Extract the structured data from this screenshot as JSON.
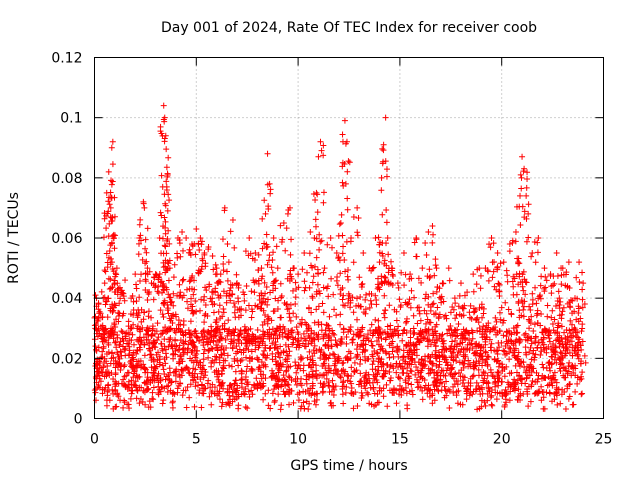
{
  "chart_data": {
    "type": "scatter",
    "title": "Day 001 of 2024, Rate Of TEC Index for receiver coob",
    "xlabel": "GPS time / hours",
    "ylabel": "ROTI / TECUs",
    "xlim": [
      0,
      25
    ],
    "ylim": [
      0,
      0.12
    ],
    "xticks": [
      0,
      5,
      10,
      15,
      20,
      25
    ],
    "xtick_labels": [
      "0",
      "5",
      "10",
      "15",
      "20",
      "25"
    ],
    "yticks": [
      0,
      0.02,
      0.04,
      0.06,
      0.08,
      0.1,
      0.12
    ],
    "ytick_labels": [
      "0",
      "0.02",
      "0.04",
      "0.06",
      "0.08",
      "0.1",
      "0.12"
    ],
    "grid": true,
    "marker": "+",
    "color": "#ff0000",
    "series_name": "ROTI",
    "series": {
      "x": [
        0.05,
        0.1,
        0.2,
        0.3,
        0.4,
        0.5,
        0.6,
        0.7,
        0.8,
        0.85,
        0.9,
        0.95,
        1.0,
        1.1,
        1.3,
        1.5,
        1.8,
        2.0,
        2.2,
        2.4,
        2.45,
        2.6,
        2.8,
        3.0,
        3.2,
        3.35,
        3.4,
        3.45,
        3.5,
        3.55,
        3.6,
        3.7,
        3.9,
        4.1,
        4.3,
        4.5,
        4.7,
        4.9,
        5.0,
        5.2,
        5.4,
        5.6,
        5.8,
        6.0,
        6.2,
        6.4,
        6.6,
        6.8,
        7.0,
        7.3,
        7.6,
        7.9,
        8.2,
        8.4,
        8.5,
        8.6,
        8.8,
        9.0,
        9.3,
        9.5,
        9.6,
        9.8,
        10.0,
        10.3,
        10.6,
        10.8,
        10.9,
        11.0,
        11.1,
        11.3,
        11.6,
        11.9,
        12.1,
        12.2,
        12.3,
        12.4,
        12.6,
        12.9,
        13.2,
        13.5,
        13.8,
        14.0,
        14.1,
        14.2,
        14.3,
        14.4,
        14.6,
        14.9,
        15.2,
        15.5,
        15.8,
        16.1,
        16.4,
        16.6,
        16.8,
        17.1,
        17.4,
        17.7,
        18.0,
        18.3,
        18.6,
        18.9,
        19.2,
        19.5,
        19.8,
        20.1,
        20.4,
        20.7,
        20.9,
        21.0,
        21.1,
        21.2,
        21.3,
        21.5,
        21.8,
        22.1,
        22.4,
        22.7,
        23.0,
        23.3,
        23.6,
        23.8,
        24.0
      ],
      "y": [
        0.041,
        0.04,
        0.038,
        0.035,
        0.03,
        0.045,
        0.075,
        0.082,
        0.07,
        0.09,
        0.092,
        0.06,
        0.045,
        0.05,
        0.042,
        0.046,
        0.04,
        0.048,
        0.06,
        0.072,
        0.07,
        0.05,
        0.045,
        0.048,
        0.06,
        0.077,
        0.104,
        0.1,
        0.094,
        0.077,
        0.069,
        0.05,
        0.047,
        0.06,
        0.062,
        0.06,
        0.055,
        0.058,
        0.063,
        0.06,
        0.055,
        0.057,
        0.054,
        0.05,
        0.048,
        0.07,
        0.052,
        0.066,
        0.045,
        0.042,
        0.06,
        0.055,
        0.05,
        0.068,
        0.088,
        0.078,
        0.06,
        0.05,
        0.065,
        0.068,
        0.07,
        0.05,
        0.048,
        0.055,
        0.062,
        0.06,
        0.075,
        0.087,
        0.092,
        0.05,
        0.06,
        0.055,
        0.065,
        0.085,
        0.099,
        0.092,
        0.06,
        0.07,
        0.055,
        0.05,
        0.06,
        0.052,
        0.08,
        0.091,
        0.1,
        0.06,
        0.05,
        0.045,
        0.055,
        0.048,
        0.06,
        0.05,
        0.062,
        0.064,
        0.05,
        0.045,
        0.05,
        0.04,
        0.045,
        0.042,
        0.048,
        0.05,
        0.05,
        0.06,
        0.055,
        0.052,
        0.058,
        0.062,
        0.074,
        0.087,
        0.083,
        0.074,
        0.068,
        0.055,
        0.06,
        0.05,
        0.048,
        0.055,
        0.05,
        0.052,
        0.04,
        0.052,
        0.045
      ],
      "baseline_range": [
        0.003,
        0.045
      ],
      "typical_range": [
        0.008,
        0.03
      ]
    }
  }
}
